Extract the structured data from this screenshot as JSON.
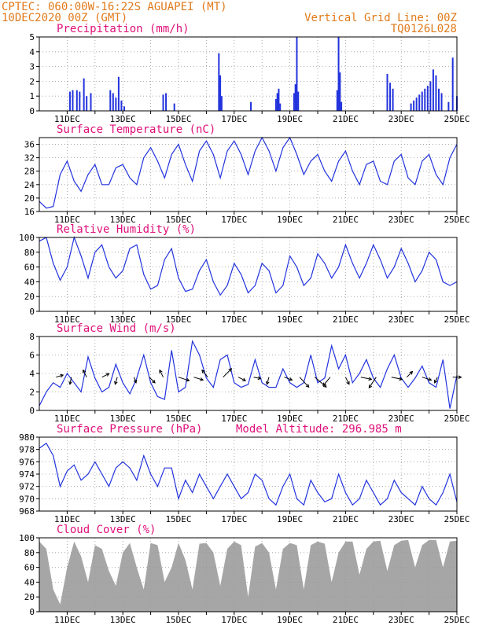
{
  "header": {
    "line1": "CPTEC:  060:00W-16:22S  AGUAPEI (MT)",
    "line2": "10DEC2020 00Z (GMT)",
    "grid_note": "Vertical Grid Line: 00Z",
    "model": "TQ0126L028"
  },
  "colors": {
    "header": "#e07a1a",
    "title": "#e0107a",
    "series": "#2233dd",
    "cloud": "#a6a6a6",
    "grid": "#9a9a9a"
  },
  "date_ticks": [
    "11DEC",
    "13DEC",
    "15DEC",
    "17DEC",
    "19DEC",
    "21DEC",
    "23DEC",
    "25DEC"
  ],
  "chart_data": [
    {
      "type": "bar",
      "title": "Precipitation (mm/h)",
      "ylim": [
        0,
        5
      ],
      "yticks": [
        0,
        1,
        2,
        3,
        4,
        5
      ],
      "x_start_day": 10,
      "x_end_day": 25,
      "x": [
        11.1,
        11.2,
        11.35,
        11.45,
        11.6,
        11.7,
        11.85,
        12.55,
        12.65,
        12.75,
        12.85,
        12.95,
        13.05,
        14.45,
        14.55,
        14.85,
        16.45,
        16.5,
        16.55,
        17.6,
        18.5,
        18.55,
        18.6,
        18.65,
        19.15,
        19.2,
        19.25,
        19.3,
        20.7,
        20.75,
        20.8,
        20.85,
        22.5,
        22.6,
        22.7,
        23.35,
        23.45,
        23.55,
        23.65,
        23.75,
        23.85,
        23.95,
        24.05,
        24.15,
        24.25,
        24.35,
        24.45,
        24.7,
        24.85,
        25.0
      ],
      "values": [
        1.3,
        1.4,
        1.4,
        1.3,
        2.2,
        1.0,
        1.2,
        1.4,
        1.2,
        0.9,
        2.3,
        0.7,
        0.3,
        1.1,
        1.2,
        0.5,
        3.9,
        2.4,
        1.0,
        0.6,
        0.8,
        1.2,
        1.5,
        0.5,
        1.2,
        1.8,
        5.0,
        1.3,
        1.4,
        5.0,
        2.6,
        0.6,
        2.5,
        1.9,
        1.5,
        0.5,
        0.7,
        0.9,
        1.1,
        1.3,
        1.5,
        1.7,
        2.0,
        2.8,
        2.4,
        1.5,
        1.2,
        0.6,
        3.6,
        1.0
      ]
    },
    {
      "type": "line",
      "title": "Surface Temperature (nC)",
      "ylim": [
        16,
        38
      ],
      "yticks": [
        16,
        20,
        24,
        28,
        32,
        36
      ],
      "x": [
        10.0,
        10.25,
        10.5,
        10.75,
        11.0,
        11.25,
        11.5,
        11.75,
        12.0,
        12.25,
        12.5,
        12.75,
        13.0,
        13.25,
        13.5,
        13.75,
        14.0,
        14.25,
        14.5,
        14.75,
        15.0,
        15.25,
        15.5,
        15.75,
        16.0,
        16.25,
        16.5,
        16.75,
        17.0,
        17.25,
        17.5,
        17.75,
        18.0,
        18.25,
        18.5,
        18.75,
        19.0,
        19.25,
        19.5,
        19.75,
        20.0,
        20.25,
        20.5,
        20.75,
        21.0,
        21.25,
        21.5,
        21.75,
        22.0,
        22.25,
        22.5,
        22.75,
        23.0,
        23.25,
        23.5,
        23.75,
        24.0,
        24.25,
        24.5,
        24.75,
        25.0
      ],
      "y": [
        19,
        17,
        17.5,
        27,
        31,
        25,
        22,
        27,
        30,
        24,
        24,
        29,
        30,
        26,
        24,
        32,
        35,
        31,
        26,
        33,
        36,
        30,
        25,
        34,
        37,
        33,
        26,
        34,
        37,
        33,
        27,
        34,
        38,
        34,
        28,
        35,
        38,
        33,
        27,
        31,
        33,
        28,
        25,
        31,
        34,
        28,
        24,
        30,
        31,
        25,
        24,
        31,
        33,
        26,
        24,
        31,
        33,
        27,
        24,
        32,
        36
      ]
    },
    {
      "type": "line",
      "title": "Relative Humidity (%)",
      "ylim": [
        0,
        100
      ],
      "yticks": [
        0,
        20,
        40,
        60,
        80,
        100
      ],
      "x": [
        10.0,
        10.25,
        10.5,
        10.75,
        11.0,
        11.25,
        11.5,
        11.75,
        12.0,
        12.25,
        12.5,
        12.75,
        13.0,
        13.25,
        13.5,
        13.75,
        14.0,
        14.25,
        14.5,
        14.75,
        15.0,
        15.25,
        15.5,
        15.75,
        16.0,
        16.25,
        16.5,
        16.75,
        17.0,
        17.25,
        17.5,
        17.75,
        18.0,
        18.25,
        18.5,
        18.75,
        19.0,
        19.25,
        19.5,
        19.75,
        20.0,
        20.25,
        20.5,
        20.75,
        21.0,
        21.25,
        21.5,
        21.75,
        22.0,
        22.25,
        22.5,
        22.75,
        23.0,
        23.25,
        23.5,
        23.75,
        24.0,
        24.25,
        24.5,
        24.75,
        25.0
      ],
      "y": [
        95,
        100,
        65,
        42,
        60,
        100,
        75,
        45,
        80,
        90,
        60,
        45,
        55,
        85,
        90,
        50,
        30,
        35,
        70,
        85,
        45,
        27,
        30,
        55,
        70,
        40,
        22,
        35,
        65,
        50,
        25,
        35,
        65,
        55,
        25,
        35,
        75,
        60,
        35,
        45,
        78,
        65,
        45,
        60,
        90,
        65,
        45,
        65,
        90,
        70,
        45,
        60,
        85,
        65,
        40,
        55,
        80,
        70,
        40,
        35,
        40
      ]
    },
    {
      "type": "line",
      "title": "Surface Wind (m/s)",
      "ylim": [
        0,
        8
      ],
      "yticks": [
        0,
        2,
        4,
        6,
        8
      ],
      "x": [
        10.0,
        10.25,
        10.5,
        10.75,
        11.0,
        11.25,
        11.5,
        11.75,
        12.0,
        12.25,
        12.5,
        12.75,
        13.0,
        13.25,
        13.5,
        13.75,
        14.0,
        14.25,
        14.5,
        14.75,
        15.0,
        15.25,
        15.5,
        15.75,
        16.0,
        16.25,
        16.5,
        16.75,
        17.0,
        17.25,
        17.5,
        17.75,
        18.0,
        18.25,
        18.5,
        18.75,
        19.0,
        19.25,
        19.5,
        19.75,
        20.0,
        20.25,
        20.5,
        20.75,
        21.0,
        21.25,
        21.5,
        21.75,
        22.0,
        22.25,
        22.5,
        22.75,
        23.0,
        23.25,
        23.5,
        23.75,
        24.0,
        24.25,
        24.5,
        24.75,
        25.0
      ],
      "y": [
        0.5,
        2.0,
        3.0,
        2.5,
        4.0,
        3.0,
        2.0,
        5.8,
        3.5,
        2.0,
        2.5,
        5.0,
        3.0,
        1.8,
        3.5,
        6.0,
        3.0,
        1.5,
        1.2,
        6.5,
        2.0,
        2.5,
        7.5,
        6.0,
        3.5,
        2.5,
        5.5,
        6.0,
        3.0,
        2.5,
        2.8,
        5.5,
        3.0,
        2.5,
        2.5,
        4.5,
        3.0,
        2.5,
        3.0,
        6.0,
        3.0,
        3.5,
        7.0,
        4.5,
        6.0,
        3.0,
        4.0,
        5.5,
        3.5,
        2.5,
        4.5,
        6.0,
        3.5,
        2.5,
        3.5,
        4.8,
        3.0,
        2.5,
        5.5,
        0.2,
        3.8
      ],
      "vectors": {
        "x": [
          10.6,
          11.15,
          11.7,
          12.25,
          12.8,
          13.4,
          13.95,
          14.45,
          15.0,
          15.55,
          16.05,
          16.6,
          17.15,
          17.7,
          18.25,
          18.8,
          19.35,
          19.9,
          20.45,
          21.0,
          21.55,
          22.1,
          22.65,
          23.2,
          23.75,
          24.3,
          24.85
        ],
        "u": [
          1,
          -0.2,
          -0.5,
          1,
          -0.3,
          0.3,
          0.8,
          -0.5,
          1.5,
          1.3,
          -0.8,
          1.2,
          1,
          1,
          -0.3,
          1.1,
          1.3,
          1.6,
          -1,
          0.5,
          1.5,
          -1,
          1.5,
          0.8,
          1.3,
          -0.4,
          1.2
        ],
        "v": [
          0.3,
          -1,
          1,
          0.5,
          -1,
          -0.8,
          -0.8,
          1,
          -0.5,
          -0.4,
          1,
          1.2,
          -0.5,
          -0.2,
          -1,
          -0.4,
          -1.4,
          -1.4,
          -1.2,
          -1,
          -0.3,
          -1.5,
          -0.3,
          0.8,
          -0.4,
          -0.8,
          0
        ]
      }
    },
    {
      "type": "line",
      "title": "Surface Pressure (hPa)",
      "annotation": "Model Altitude: 296.985 m",
      "ylim": [
        968,
        980
      ],
      "yticks": [
        968,
        970,
        972,
        974,
        976,
        978,
        980
      ],
      "x": [
        10.0,
        10.25,
        10.5,
        10.75,
        11.0,
        11.25,
        11.5,
        11.75,
        12.0,
        12.25,
        12.5,
        12.75,
        13.0,
        13.25,
        13.5,
        13.75,
        14.0,
        14.25,
        14.5,
        14.75,
        15.0,
        15.25,
        15.5,
        15.75,
        16.0,
        16.25,
        16.5,
        16.75,
        17.0,
        17.25,
        17.5,
        17.75,
        18.0,
        18.25,
        18.5,
        18.75,
        19.0,
        19.25,
        19.5,
        19.75,
        20.0,
        20.25,
        20.5,
        20.75,
        21.0,
        21.25,
        21.5,
        21.75,
        22.0,
        22.25,
        22.5,
        22.75,
        23.0,
        23.25,
        23.5,
        23.75,
        24.0,
        24.25,
        24.5,
        24.75,
        25.0
      ],
      "y": [
        978.2,
        979,
        977,
        972,
        974.5,
        975.5,
        973,
        974,
        976,
        974,
        972,
        975,
        976,
        975,
        973,
        977,
        974,
        972,
        975,
        975,
        970,
        973,
        971,
        974,
        972,
        970,
        972,
        974,
        972,
        970,
        971,
        974,
        973,
        970,
        969,
        972,
        974,
        970,
        969,
        973,
        971,
        969.5,
        970,
        974,
        971,
        969,
        970,
        973,
        971,
        969,
        970,
        973,
        971,
        970,
        969,
        972,
        970,
        969,
        971,
        974,
        969.5
      ]
    },
    {
      "type": "area",
      "title": "Cloud Cover (%)",
      "ylim": [
        0,
        100
      ],
      "yticks": [
        0,
        20,
        40,
        60,
        80,
        100
      ],
      "x": [
        10.0,
        10.25,
        10.5,
        10.75,
        11.0,
        11.25,
        11.5,
        11.75,
        12.0,
        12.25,
        12.5,
        12.75,
        13.0,
        13.25,
        13.5,
        13.75,
        14.0,
        14.25,
        14.5,
        14.75,
        15.0,
        15.25,
        15.5,
        15.75,
        16.0,
        16.25,
        16.5,
        16.75,
        17.0,
        17.25,
        17.5,
        17.75,
        18.0,
        18.25,
        18.5,
        18.75,
        19.0,
        19.25,
        19.5,
        19.75,
        20.0,
        20.25,
        20.5,
        20.75,
        21.0,
        21.25,
        21.5,
        21.75,
        22.0,
        22.25,
        22.5,
        22.75,
        23.0,
        23.25,
        23.5,
        23.75,
        24.0,
        24.25,
        24.5,
        24.75,
        25.0
      ],
      "y": [
        95,
        85,
        30,
        10,
        60,
        95,
        75,
        40,
        90,
        85,
        55,
        35,
        80,
        93,
        60,
        30,
        93,
        90,
        40,
        60,
        93,
        70,
        30,
        92,
        93,
        80,
        35,
        85,
        95,
        90,
        20,
        88,
        93,
        80,
        30,
        85,
        93,
        90,
        30,
        90,
        95,
        92,
        40,
        80,
        95,
        95,
        50,
        85,
        95,
        96,
        55,
        90,
        96,
        97,
        60,
        90,
        97,
        97,
        60,
        95,
        96
      ]
    }
  ]
}
